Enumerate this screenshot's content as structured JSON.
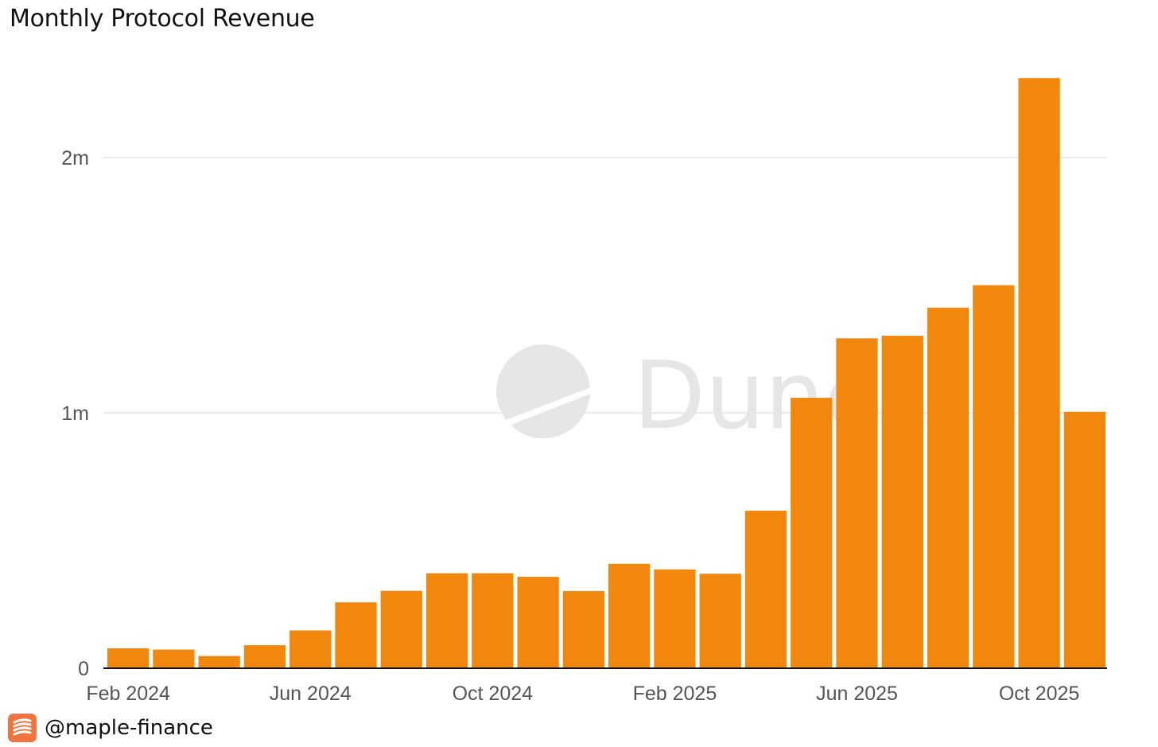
{
  "header": {
    "title": "Monthly Protocol Revenue"
  },
  "footer": {
    "handle": "@maple-finance",
    "icon": "dune-badge-icon",
    "icon_color": "#f0743f"
  },
  "watermark": {
    "text": "Dune",
    "icon": "dune-logo-icon",
    "color": "#e6e6e6"
  },
  "colors": {
    "bar": "#f2870e",
    "grid": "#e3e3e3",
    "axis": "#111111",
    "tick_text": "#555555"
  },
  "chart_data": {
    "type": "bar",
    "title": "Monthly Protocol Revenue",
    "xlabel": "",
    "ylabel": "",
    "ylim": [
      0,
      2400000
    ],
    "grid": true,
    "y_ticks": [
      {
        "value": 0,
        "label": "0"
      },
      {
        "value": 1000000,
        "label": "1m"
      },
      {
        "value": 2000000,
        "label": "2m"
      }
    ],
    "x_tick_labels": [
      {
        "index": 0,
        "label": "Feb 2024"
      },
      {
        "index": 4,
        "label": "Jun 2024"
      },
      {
        "index": 8,
        "label": "Oct 2024"
      },
      {
        "index": 12,
        "label": "Feb 2025"
      },
      {
        "index": 16,
        "label": "Jun 2025"
      },
      {
        "index": 20,
        "label": "Oct 2025"
      }
    ],
    "categories": [
      "Feb 2024",
      "Mar 2024",
      "Apr 2024",
      "May 2024",
      "Jun 2024",
      "Jul 2024",
      "Aug 2024",
      "Sep 2024",
      "Oct 2024",
      "Nov 2024",
      "Dec 2024",
      "Jan 2025",
      "Feb 2025",
      "Mar 2025",
      "Apr 2025",
      "May 2025",
      "Jun 2025",
      "Jul 2025",
      "Aug 2025",
      "Sep 2025",
      "Oct 2025",
      "Nov 2025"
    ],
    "values": [
      78000,
      73000,
      48000,
      90000,
      148000,
      258000,
      303000,
      372000,
      372000,
      358000,
      302000,
      409000,
      387000,
      370000,
      617000,
      1059000,
      1292000,
      1302000,
      1412000,
      1500000,
      2311000,
      1004000
    ]
  }
}
